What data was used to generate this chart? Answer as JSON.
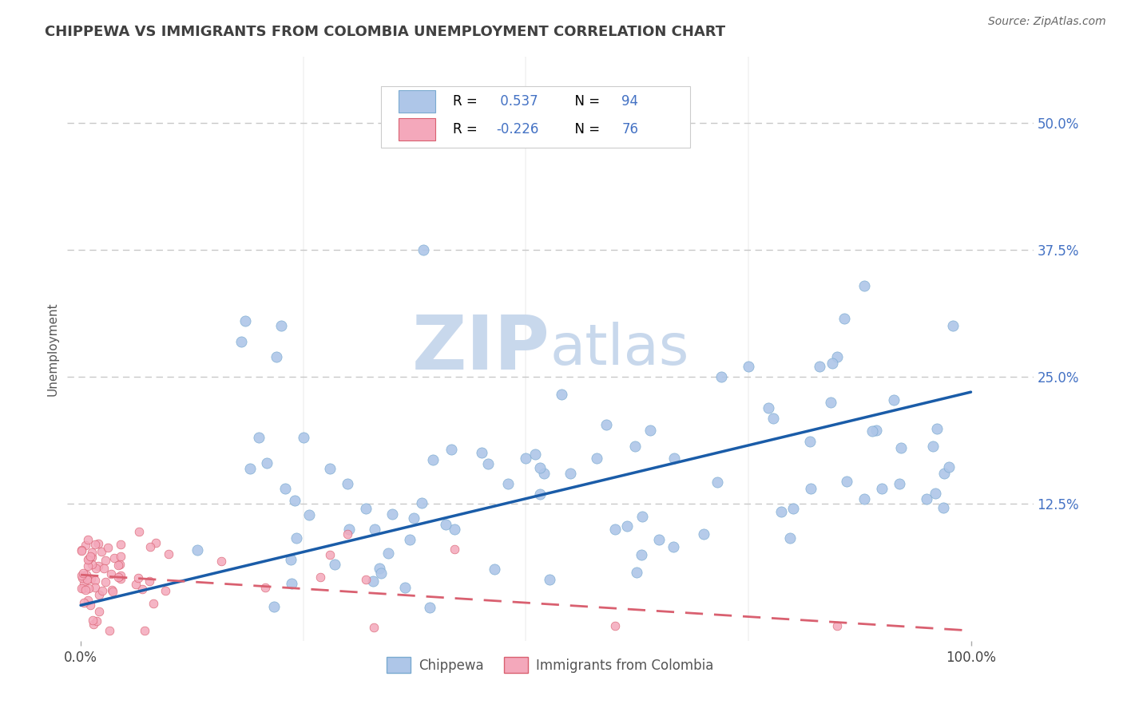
{
  "title": "CHIPPEWA VS IMMIGRANTS FROM COLOMBIA UNEMPLOYMENT CORRELATION CHART",
  "source": "Source: ZipAtlas.com",
  "legend": {
    "series1_label": "Chippewa",
    "series2_label": "Immigrants from Colombia",
    "series1_R": "0.537",
    "series1_N": "94",
    "series2_R": "-0.226",
    "series2_N": "76",
    "series1_color": "#aec6e8",
    "series2_color": "#f4a8bb"
  },
  "trend1_color": "#1a5ca8",
  "trend2_color": "#d96070",
  "scatter1_color": "#aec6e8",
  "scatter2_color": "#f4a8bb",
  "scatter1_edge": "#7aaad0",
  "scatter2_edge": "#d96070",
  "background_color": "#ffffff",
  "grid_color": "#c8c8c8",
  "title_color": "#404040",
  "axis_label_color": "#555555",
  "ytick_color": "#4472c4",
  "xtick_color": "#444444",
  "watermark_zip_color": "#c8d8ec",
  "watermark_atlas_color": "#c8d8ec",
  "watermark_text_zip": "ZIP",
  "watermark_text_atlas": "atlas",
  "legend_R_color": "#000000",
  "legend_val_color": "#4472c4",
  "figsize": [
    14.06,
    8.92
  ],
  "dpi": 100,
  "ylim_min": -0.01,
  "ylim_max": 0.565,
  "xlim_min": -0.015,
  "xlim_max": 1.07,
  "yticks": [
    0.0,
    0.125,
    0.25,
    0.375,
    0.5
  ],
  "xticks": [
    0.0,
    1.0
  ],
  "trend1_x0": 0.0,
  "trend1_y0": 0.025,
  "trend1_x1": 1.0,
  "trend1_y1": 0.235,
  "trend2_x0": 0.0,
  "trend2_y0": 0.055,
  "trend2_x1": 1.0,
  "trend2_y1": 0.0
}
